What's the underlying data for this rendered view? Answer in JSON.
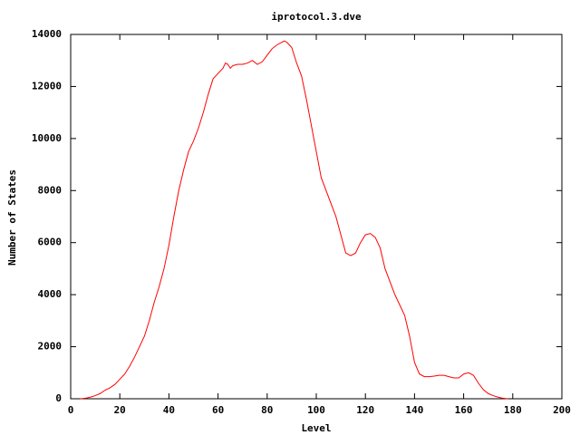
{
  "chart_data": {
    "type": "line",
    "title": "iprotocol.3.dve",
    "x_label": "Level",
    "y_label": "Number of States",
    "xlim": [
      0,
      200
    ],
    "xticks": [
      0,
      20,
      40,
      60,
      80,
      100,
      120,
      140,
      160,
      180,
      200
    ],
    "ylim": [
      0,
      14000
    ],
    "yticks": [
      0,
      2000,
      4000,
      6000,
      8000,
      10000,
      12000,
      14000
    ],
    "x": [
      4,
      6,
      8,
      10,
      12,
      14,
      16,
      18,
      20,
      22,
      24,
      26,
      28,
      30,
      32,
      34,
      36,
      38,
      40,
      42,
      44,
      46,
      48,
      50,
      52,
      54,
      56,
      58,
      60,
      62,
      63,
      64,
      65,
      66,
      68,
      70,
      72,
      74,
      76,
      78,
      80,
      82,
      84,
      86,
      87,
      88,
      90,
      92,
      94,
      96,
      98,
      100,
      102,
      104,
      106,
      108,
      110,
      112,
      114,
      116,
      118,
      120,
      122,
      124,
      126,
      128,
      130,
      132,
      134,
      136,
      138,
      140,
      142,
      144,
      146,
      148,
      150,
      152,
      154,
      156,
      158,
      160,
      162,
      164,
      166,
      168,
      170,
      172,
      174,
      176,
      178
    ],
    "series": [
      {
        "name": "states",
        "color": "#ff0000",
        "values": [
          0,
          20,
          60,
          120,
          200,
          330,
          420,
          550,
          750,
          950,
          1250,
          1600,
          2000,
          2400,
          3000,
          3700,
          4300,
          5000,
          5900,
          7000,
          8000,
          8800,
          9500,
          9900,
          10400,
          11000,
          11700,
          12300,
          12500,
          12700,
          12900,
          12850,
          12700,
          12800,
          12850,
          12850,
          12900,
          13000,
          12850,
          12950,
          13200,
          13450,
          13600,
          13700,
          13750,
          13700,
          13500,
          12900,
          12400,
          11500,
          10500,
          9500,
          8500,
          8000,
          7500,
          7000,
          6300,
          5600,
          5500,
          5600,
          6000,
          6300,
          6350,
          6200,
          5800,
          5000,
          4500,
          4000,
          3600,
          3200,
          2400,
          1400,
          950,
          850,
          850,
          870,
          900,
          900,
          850,
          800,
          800,
          950,
          1000,
          900,
          600,
          350,
          200,
          120,
          60,
          20,
          0
        ]
      }
    ]
  }
}
